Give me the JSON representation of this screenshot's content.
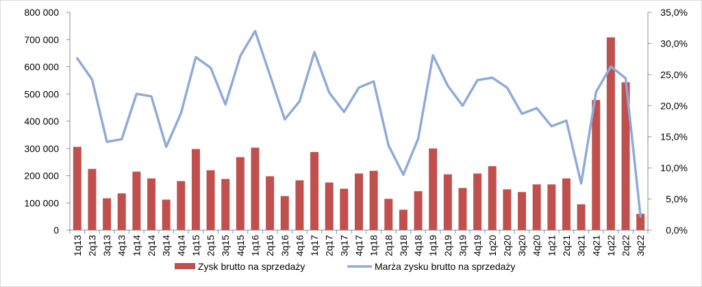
{
  "chart_data": {
    "type": "bar",
    "categories": [
      "1q13",
      "2q13",
      "3q13",
      "4q13",
      "1q14",
      "2q14",
      "3q14",
      "4q14",
      "1q15",
      "2q15",
      "3q15",
      "4q15",
      "1q16",
      "2q16",
      "3q16",
      "4q16",
      "1q17",
      "2q17",
      "3q17",
      "4q17",
      "1q18",
      "2q18",
      "3q18",
      "4q18",
      "1q19",
      "2q19",
      "3q19",
      "4q19",
      "1q20",
      "2q20",
      "3q20",
      "4q20",
      "1q21",
      "2q21",
      "3q21",
      "4q21",
      "1q22",
      "2q22",
      "3q22"
    ],
    "series": [
      {
        "name": "Zysk brutto na sprzedaży",
        "type": "bar",
        "axis": "left",
        "color": "#c0504d",
        "values": [
          306000,
          225000,
          117000,
          135000,
          215000,
          190000,
          112000,
          180000,
          298000,
          220000,
          188000,
          268000,
          303000,
          198000,
          125000,
          183000,
          287000,
          175000,
          152000,
          208000,
          218000,
          115000,
          75000,
          143000,
          300000,
          205000,
          155000,
          208000,
          235000,
          150000,
          140000,
          168000,
          168000,
          190000,
          95000,
          478000,
          708000,
          543000,
          60000
        ]
      },
      {
        "name": "Marża zysku brutto na sprzedaży",
        "type": "line",
        "axis": "right",
        "color": "#8eaad8",
        "values": [
          27.6,
          24.2,
          14.2,
          14.6,
          21.9,
          21.5,
          13.4,
          18.8,
          27.8,
          26.1,
          20.2,
          28.0,
          32.0,
          24.9,
          17.8,
          20.7,
          28.6,
          22.1,
          19.0,
          22.9,
          23.9,
          13.6,
          8.9,
          14.7,
          28.1,
          23.2,
          20.0,
          24.1,
          24.5,
          22.9,
          18.7,
          19.6,
          16.7,
          17.6,
          7.5,
          22.2,
          26.3,
          24.4,
          2.2
        ]
      }
    ],
    "y_left": {
      "min": 0,
      "max": 800000,
      "step": 100000,
      "tick_labels": [
        "0",
        "100 000",
        "200 000",
        "300 000",
        "400 000",
        "500 000",
        "600 000",
        "700 000",
        "800 000"
      ]
    },
    "y_right": {
      "min": 0,
      "max": 35,
      "step": 5,
      "tick_labels": [
        "0,0%",
        "5,0%",
        "10,0%",
        "15,0%",
        "20,0%",
        "25,0%",
        "30,0%",
        "35,0%"
      ]
    },
    "grid": false,
    "legend": {
      "position": "bottom"
    }
  }
}
